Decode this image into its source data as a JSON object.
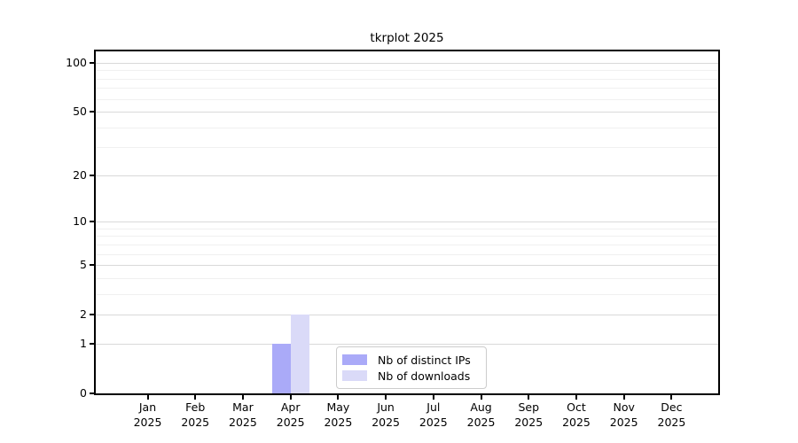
{
  "chart_data": {
    "type": "bar",
    "title": "tkrplot 2025",
    "year_label": "2025",
    "categories": [
      "Jan",
      "Feb",
      "Mar",
      "Apr",
      "May",
      "Jun",
      "Jul",
      "Aug",
      "Sep",
      "Oct",
      "Nov",
      "Dec"
    ],
    "series": [
      {
        "name": "Nb of distinct IPs",
        "color": "#aaaaf8",
        "values": [
          0,
          0,
          0,
          1,
          0,
          0,
          0,
          0,
          0,
          0,
          0,
          0
        ]
      },
      {
        "name": "Nb of downloads",
        "color": "#dadaf8",
        "values": [
          0,
          0,
          0,
          2,
          0,
          0,
          0,
          0,
          0,
          0,
          0,
          0
        ]
      }
    ],
    "xlabel": "",
    "ylabel": "",
    "y_scale": "log1p",
    "ylim": [
      0,
      118
    ],
    "y_tick_values": [
      0,
      1,
      2,
      5,
      10,
      20,
      50,
      100
    ],
    "y_minor_grid_values": [
      3,
      4,
      6,
      7,
      8,
      9,
      30,
      40,
      60,
      70,
      80,
      90
    ],
    "grid": true,
    "legend_position": "inside-bottom-center"
  },
  "colors": {
    "background": "#ffffff",
    "axis": "#000000",
    "text": "#000000",
    "major_gridline": "#d9d9d9",
    "minor_gridline": "#f0f0f0",
    "legend_border": "#cccccc",
    "legend_background": "#ffffff"
  }
}
